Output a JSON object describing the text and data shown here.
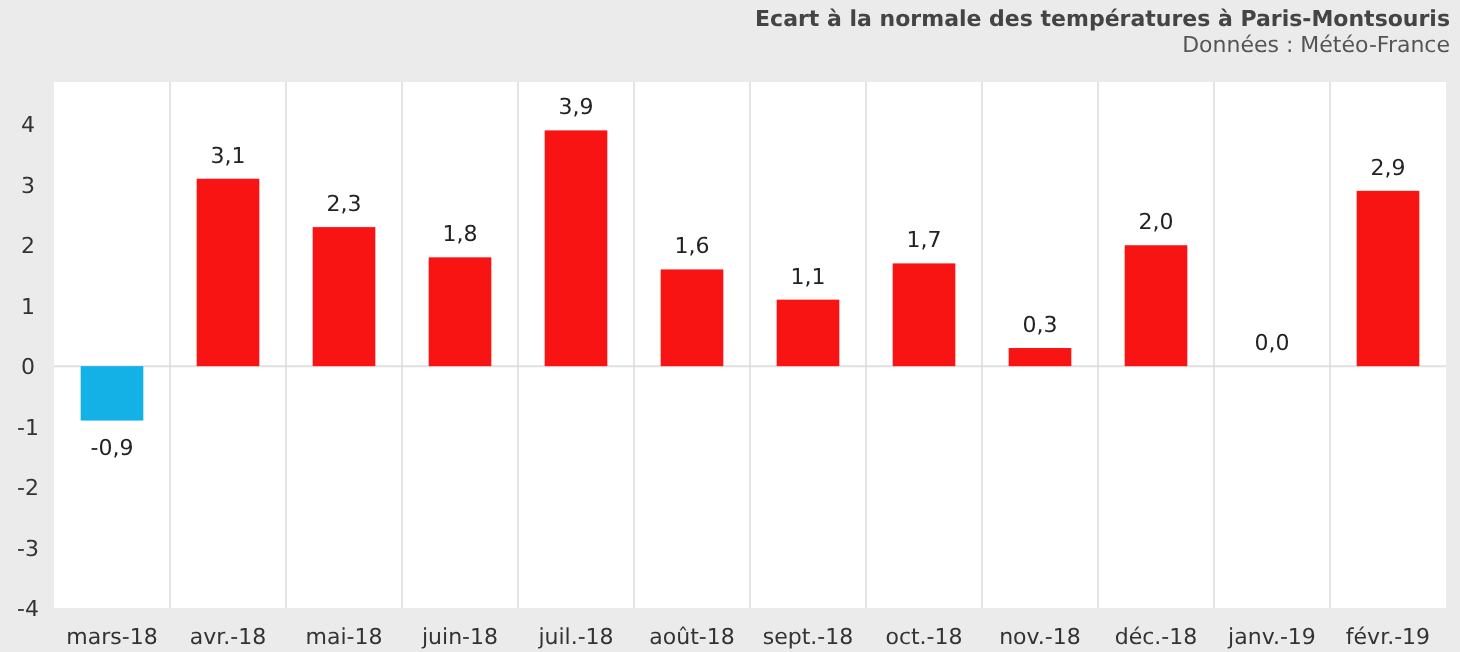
{
  "chart_data": {
    "type": "bar",
    "title": "Ecart à la normale des températures à Paris-Montsouris",
    "subtitle": "Données : Météo-France",
    "categories": [
      "mars-18",
      "avr.-18",
      "mai-18",
      "juin-18",
      "juil.-18",
      "août-18",
      "sept.-18",
      "oct.-18",
      "nov.-18",
      "déc.-18",
      "janv.-19",
      "févr.-19"
    ],
    "values": [
      -0.9,
      3.1,
      2.3,
      1.8,
      3.9,
      1.6,
      1.1,
      1.7,
      0.3,
      2.0,
      0.0,
      2.9
    ],
    "value_labels": [
      "-0,9",
      "3,1",
      "2,3",
      "1,8",
      "3,9",
      "1,6",
      "1,1",
      "1,7",
      "0,3",
      "2,0",
      "0,0",
      "2,9"
    ],
    "colors": [
      "#14b1e7",
      "#f91414",
      "#f91414",
      "#f91414",
      "#f91414",
      "#f91414",
      "#f91414",
      "#f91414",
      "#f91414",
      "#f91414",
      "#f91414",
      "#f91414"
    ],
    "ylim": [
      -4,
      4.7
    ],
    "yticks": [
      -4,
      -3,
      -2,
      -1,
      0,
      1,
      2,
      3,
      4
    ],
    "grid": "x"
  }
}
